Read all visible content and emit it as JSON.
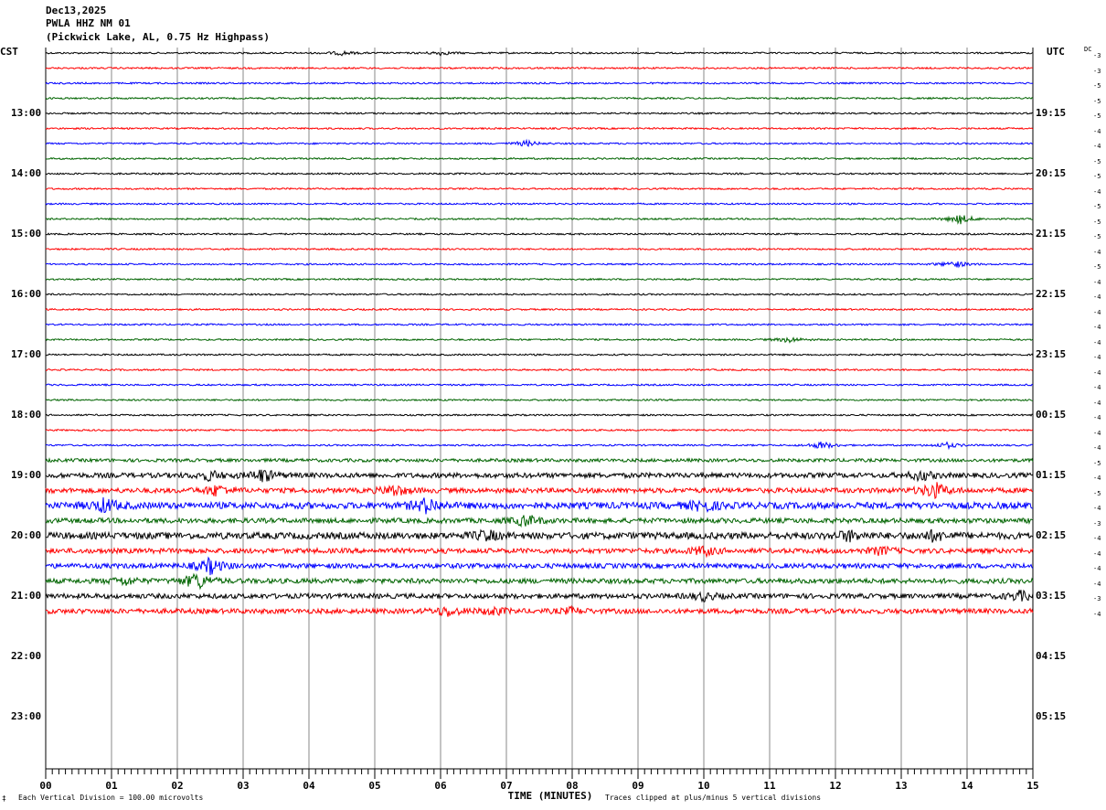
{
  "header": {
    "date": "Dec13,2025",
    "station": "PWLA HHZ NM 01",
    "location": "(Pickwick Lake, AL, 0.75 Hz Highpass)"
  },
  "left_zone": "CST",
  "right_zone": "UTC",
  "dc_label": "DC",
  "footer": {
    "left_mark": "‡",
    "scale_note": "Each Vertical Division =  100.00 microvolts",
    "clip_note": "Traces clipped at plus/minus 5 vertical divisions"
  },
  "chart_data": {
    "type": "line",
    "title": "PWLA HHZ NM 01 (Pickwick Lake, AL, 0.75 Hz Highpass)",
    "xlabel": "TIME (MINUTES)",
    "x_ticks": [
      "00",
      "01",
      "02",
      "03",
      "04",
      "05",
      "06",
      "07",
      "08",
      "09",
      "10",
      "11",
      "12",
      "13",
      "14",
      "15"
    ],
    "xlim": [
      0,
      15
    ],
    "minutes_per_line": 15,
    "left_hour_labels": [
      "13:00",
      "14:00",
      "15:00",
      "16:00",
      "17:00",
      "18:00",
      "19:00",
      "20:00",
      "21:00",
      "22:00",
      "23:00"
    ],
    "right_hour_labels": [
      "19:15",
      "20:15",
      "21:15",
      "22:15",
      "23:15",
      "00:15",
      "01:15",
      "02:15",
      "03:15",
      "04:15",
      "05:15"
    ],
    "trace_colors": [
      "#000000",
      "#ff0000",
      "#0000ff",
      "#006400"
    ],
    "dc_offsets": [
      "-3",
      "-3",
      "-5",
      "-5",
      "-5",
      "-4",
      "-4",
      "-5",
      "-5",
      "-4",
      "-5",
      "-5",
      "-5",
      "-4",
      "-5",
      "-4",
      "-4",
      "-4",
      "-4",
      "-4",
      "-4",
      "-4",
      "-4",
      "-4",
      "-4",
      "-4",
      "-4",
      "-5",
      "-4",
      "-5",
      "-4",
      "-3",
      "-4",
      "-4",
      "-4",
      "-4",
      "-3",
      "-4"
    ],
    "trace_activity": [
      1,
      1,
      1,
      1,
      1,
      1,
      1,
      1,
      1,
      1,
      1,
      1,
      1,
      1,
      1,
      1,
      1,
      1,
      1,
      1,
      1,
      1,
      1,
      1,
      1,
      1,
      1,
      2,
      3,
      3,
      4,
      3,
      4,
      3,
      3,
      3,
      3,
      3
    ],
    "events": [
      {
        "line": 0,
        "minute": 4.5,
        "amp": 2
      },
      {
        "line": 0,
        "minute": 6.0,
        "amp": 2
      },
      {
        "line": 6,
        "minute": 7.3,
        "amp": 3
      },
      {
        "line": 11,
        "minute": 13.9,
        "amp": 5
      },
      {
        "line": 14,
        "minute": 13.8,
        "amp": 4
      },
      {
        "line": 19,
        "minute": 11.3,
        "amp": 3
      },
      {
        "line": 26,
        "minute": 11.8,
        "amp": 4
      },
      {
        "line": 26,
        "minute": 13.7,
        "amp": 3
      },
      {
        "line": 28,
        "minute": 3.3,
        "amp": 7
      },
      {
        "line": 28,
        "minute": 2.5,
        "amp": 5
      },
      {
        "line": 28,
        "minute": 13.3,
        "amp": 5
      },
      {
        "line": 29,
        "minute": 2.6,
        "amp": 6
      },
      {
        "line": 29,
        "minute": 5.3,
        "amp": 6
      },
      {
        "line": 29,
        "minute": 13.5,
        "amp": 9
      },
      {
        "line": 30,
        "minute": 0.9,
        "amp": 7
      },
      {
        "line": 30,
        "minute": 5.8,
        "amp": 8
      },
      {
        "line": 30,
        "minute": 10.0,
        "amp": 6
      },
      {
        "line": 31,
        "minute": 7.3,
        "amp": 6
      },
      {
        "line": 32,
        "minute": 6.7,
        "amp": 5
      },
      {
        "line": 32,
        "minute": 12.2,
        "amp": 5
      },
      {
        "line": 32,
        "minute": 13.5,
        "amp": 5
      },
      {
        "line": 33,
        "minute": 10.0,
        "amp": 5
      },
      {
        "line": 33,
        "minute": 12.7,
        "amp": 4
      },
      {
        "line": 34,
        "minute": 2.5,
        "amp": 8
      },
      {
        "line": 35,
        "minute": 2.3,
        "amp": 9
      },
      {
        "line": 35,
        "minute": 1.2,
        "amp": 4
      },
      {
        "line": 36,
        "minute": 10.0,
        "amp": 4
      },
      {
        "line": 36,
        "minute": 14.8,
        "amp": 5
      },
      {
        "line": 37,
        "minute": 6.1,
        "amp": 5
      },
      {
        "line": 37,
        "minute": 6.8,
        "amp": 4
      },
      {
        "line": 37,
        "minute": 8.0,
        "amp": 3
      }
    ]
  }
}
